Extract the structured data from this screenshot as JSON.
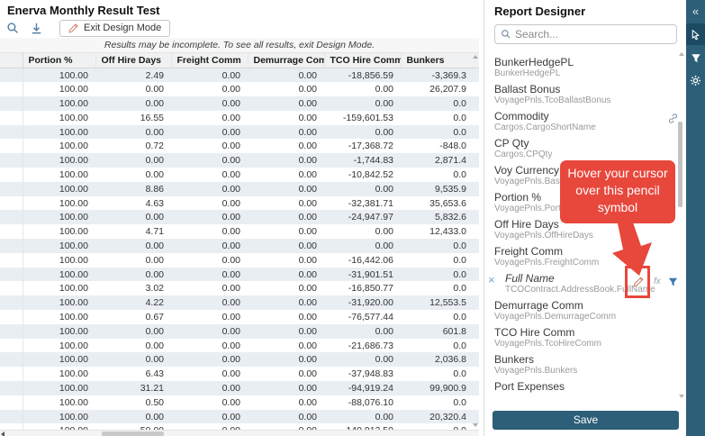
{
  "header": {
    "title": "Enerva Monthly Result Test"
  },
  "toolbar": {
    "exit_design_mode_label": "Exit Design Mode",
    "icons": [
      "search-icon",
      "download-icon",
      "pencil-icon"
    ]
  },
  "banner": {
    "text": "Results may be incomplete. To see all results, exit Design Mode."
  },
  "grid": {
    "columns": [
      "",
      "Portion %",
      "Off Hire Days",
      "Freight Comm",
      "Demurrage Comm",
      "TCO Hire Comm",
      "Bunkers"
    ],
    "rows": [
      [
        "100.00",
        "2.49",
        "0.00",
        "0.00",
        "-18,856.59",
        "-3,369.3"
      ],
      [
        "100.00",
        "0.00",
        "0.00",
        "0.00",
        "0.00",
        "26,207.9"
      ],
      [
        "100.00",
        "0.00",
        "0.00",
        "0.00",
        "0.00",
        "0.0"
      ],
      [
        "100.00",
        "16.55",
        "0.00",
        "0.00",
        "-159,601.53",
        "0.0"
      ],
      [
        "100.00",
        "0.00",
        "0.00",
        "0.00",
        "0.00",
        "0.0"
      ],
      [
        "100.00",
        "0.72",
        "0.00",
        "0.00",
        "-17,368.72",
        "-848.0"
      ],
      [
        "100.00",
        "0.00",
        "0.00",
        "0.00",
        "-1,744.83",
        "2,871.4"
      ],
      [
        "100.00",
        "0.00",
        "0.00",
        "0.00",
        "-10,842.52",
        "0.0"
      ],
      [
        "100.00",
        "8.86",
        "0.00",
        "0.00",
        "0.00",
        "9,535.9"
      ],
      [
        "100.00",
        "4.63",
        "0.00",
        "0.00",
        "-32,381.71",
        "35,653.6"
      ],
      [
        "100.00",
        "0.00",
        "0.00",
        "0.00",
        "-24,947.97",
        "5,832.6"
      ],
      [
        "100.00",
        "4.71",
        "0.00",
        "0.00",
        "0.00",
        "12,433.0"
      ],
      [
        "100.00",
        "0.00",
        "0.00",
        "0.00",
        "0.00",
        "0.0"
      ],
      [
        "100.00",
        "0.00",
        "0.00",
        "0.00",
        "-16,442.06",
        "0.0"
      ],
      [
        "100.00",
        "0.00",
        "0.00",
        "0.00",
        "-31,901.51",
        "0.0"
      ],
      [
        "100.00",
        "3.02",
        "0.00",
        "0.00",
        "-16,850.77",
        "0.0"
      ],
      [
        "100.00",
        "4.22",
        "0.00",
        "0.00",
        "-31,920.00",
        "12,553.5"
      ],
      [
        "100.00",
        "0.67",
        "0.00",
        "0.00",
        "-76,577.44",
        "0.0"
      ],
      [
        "100.00",
        "0.00",
        "0.00",
        "0.00",
        "0.00",
        "601.8"
      ],
      [
        "100.00",
        "0.00",
        "0.00",
        "0.00",
        "-21,686.73",
        "0.0"
      ],
      [
        "100.00",
        "0.00",
        "0.00",
        "0.00",
        "0.00",
        "2,036.8"
      ],
      [
        "100.00",
        "6.43",
        "0.00",
        "0.00",
        "-37,948.83",
        "0.0"
      ],
      [
        "100.00",
        "31.21",
        "0.00",
        "0.00",
        "-94,919.24",
        "99,900.9"
      ],
      [
        "100.00",
        "0.50",
        "0.00",
        "0.00",
        "-88,076.10",
        "0.0"
      ],
      [
        "100.00",
        "0.00",
        "0.00",
        "0.00",
        "0.00",
        "20,320.4"
      ]
    ],
    "partial_row": [
      "100.00",
      "50.00",
      "0.00",
      "0.00",
      "-140,912.50",
      "0.0"
    ]
  },
  "designer": {
    "title": "Report Designer",
    "search_placeholder": "Search...",
    "save_label": "Save",
    "fields": [
      {
        "label": "BunkerHedgePL",
        "path": "BunkerHedgePL"
      },
      {
        "label": "Ballast Bonus",
        "path": "VoyagePnls.TcoBallastBonus"
      },
      {
        "label": "Commodity",
        "path": "Cargos.CargoShortName",
        "link": true
      },
      {
        "label": "CP Qty",
        "path": "Cargos.CPQty"
      },
      {
        "label": "Voy Currency",
        "path": "VoyagePnls.BaseC"
      },
      {
        "label": "Portion %",
        "path": "VoyagePnls.Portion"
      },
      {
        "label": "Off Hire Days",
        "path": "VoyagePnls.OffHireDays"
      },
      {
        "label": "Freight Comm",
        "path": "VoyagePnls.FreightComm"
      },
      {
        "label": "Full Name",
        "path": "TCOContract.AddressBook.FullName",
        "italic": true,
        "removable": true,
        "editable": true
      },
      {
        "label": "Demurrage Comm",
        "path": "VoyagePnls.DemurrageComm"
      },
      {
        "label": "TCO Hire Comm",
        "path": "VoyagePnls.TcoHireComm"
      },
      {
        "label": "Bunkers",
        "path": "VoyagePnls.Bunkers"
      },
      {
        "label": "Port Expenses",
        "path": ""
      }
    ]
  },
  "side_toolbar": {
    "icons": [
      "collapse-icon",
      "pointer-icon",
      "filter-icon",
      "gear-icon"
    ],
    "active": "pointer-icon"
  },
  "callout": {
    "text": "Hover your cursor over this pencil symbol"
  },
  "colors": {
    "panel_blue": "#2d5f78",
    "panel_blue_active": "#1d4a63",
    "stripe": "#e9eef3",
    "callout_red": "#e8473c",
    "field_filter_blue": "#3c77b5",
    "icon_steel_blue": "#4f7ca3",
    "pencil_salmon": "#cd7f6c"
  }
}
